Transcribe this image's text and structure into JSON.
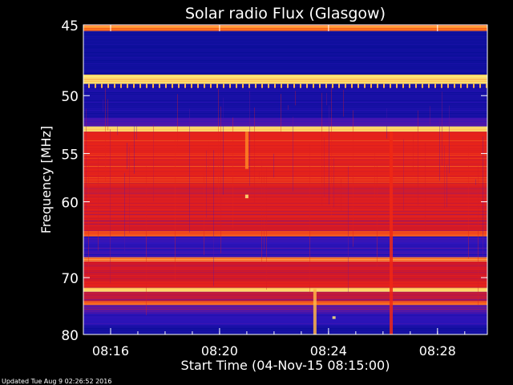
{
  "chart_data": {
    "type": "heatmap",
    "title": "Solar radio Flux (Glasgow)",
    "xlabel": "Start Time (04-Nov-15 08:15:00)",
    "ylabel": "Frequency [MHz]",
    "x_ticks": [
      "08:16",
      "08:20",
      "08:24",
      "08:28"
    ],
    "x_tick_minutes": [
      16,
      20,
      24,
      28
    ],
    "xlim_minutes": [
      15,
      29.83
    ],
    "y_ticks": [
      45,
      50,
      55,
      60,
      70,
      80
    ],
    "ylim": [
      45,
      80
    ],
    "y_scale": "reciprocal",
    "colors": {
      "background": "#000000",
      "low": "#0a10c8",
      "mid": "#6a1890",
      "high": "#e81818",
      "peak": "#ffd040"
    },
    "bands": [
      {
        "f0": 45.0,
        "f1": 45.4,
        "level": 0.9
      },
      {
        "f0": 45.4,
        "f1": 48.4,
        "level": 0.05
      },
      {
        "f0": 48.4,
        "f1": 49.1,
        "level": 1.0
      },
      {
        "f0": 49.1,
        "f1": 51.8,
        "level": 0.12
      },
      {
        "f0": 51.8,
        "f1": 52.5,
        "level": 0.35
      },
      {
        "f0": 52.5,
        "f1": 53.0,
        "level": 0.98
      },
      {
        "f0": 53.0,
        "f1": 58.0,
        "level": 0.72
      },
      {
        "f0": 58.0,
        "f1": 62.0,
        "level": 0.66
      },
      {
        "f0": 62.0,
        "f1": 63.5,
        "level": 0.6
      },
      {
        "f0": 63.5,
        "f1": 64.2,
        "level": 0.85
      },
      {
        "f0": 64.2,
        "f1": 67.0,
        "level": 0.28
      },
      {
        "f0": 67.0,
        "f1": 67.6,
        "level": 0.85
      },
      {
        "f0": 67.6,
        "f1": 70.5,
        "level": 0.6
      },
      {
        "f0": 70.5,
        "f1": 71.6,
        "level": 0.7
      },
      {
        "f0": 71.6,
        "f1": 72.2,
        "level": 1.0
      },
      {
        "f0": 72.2,
        "f1": 73.8,
        "level": 0.55
      },
      {
        "f0": 73.8,
        "f1": 74.5,
        "level": 0.88
      },
      {
        "f0": 74.5,
        "f1": 76.0,
        "level": 0.38
      },
      {
        "f0": 76.0,
        "f1": 78.2,
        "level": 0.25
      },
      {
        "f0": 78.2,
        "f1": 80.0,
        "level": 0.1
      }
    ],
    "bursts": [
      {
        "t": 21.0,
        "f0": 53.0,
        "f1": 56.5,
        "level": 0.9
      },
      {
        "t": 21.0,
        "f0": 59.2,
        "f1": 59.6,
        "level": 1.0
      },
      {
        "t": 23.5,
        "f0": 71.8,
        "f1": 80.0,
        "level": 0.95
      },
      {
        "t": 26.3,
        "f0": 53.0,
        "f1": 80.0,
        "level": 0.8
      },
      {
        "t": 24.2,
        "f0": 76.5,
        "f1": 77.0,
        "level": 1.0
      }
    ]
  },
  "footer": {
    "updated": "Updated Tue Aug  9 02:26:52 2016"
  }
}
